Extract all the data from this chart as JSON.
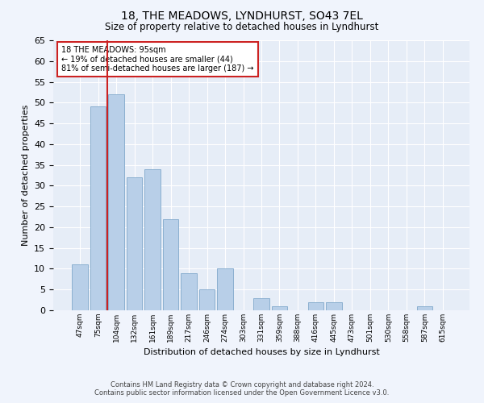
{
  "title": "18, THE MEADOWS, LYNDHURST, SO43 7EL",
  "subtitle": "Size of property relative to detached houses in Lyndhurst",
  "xlabel": "Distribution of detached houses by size in Lyndhurst",
  "ylabel": "Number of detached properties",
  "categories": [
    "47sqm",
    "75sqm",
    "104sqm",
    "132sqm",
    "161sqm",
    "189sqm",
    "217sqm",
    "246sqm",
    "274sqm",
    "303sqm",
    "331sqm",
    "359sqm",
    "388sqm",
    "416sqm",
    "445sqm",
    "473sqm",
    "501sqm",
    "530sqm",
    "558sqm",
    "587sqm",
    "615sqm"
  ],
  "values": [
    11,
    49,
    52,
    32,
    34,
    22,
    9,
    5,
    10,
    0,
    3,
    1,
    0,
    2,
    2,
    0,
    0,
    0,
    0,
    1,
    0
  ],
  "bar_color": "#b8cfe8",
  "bar_edge_color": "#8aafd0",
  "vline_color": "#cc2222",
  "vline_x": 1.5,
  "annotation_text_line1": "18 THE MEADOWS: 95sqm",
  "annotation_text_line2": "← 19% of detached houses are smaller (44)",
  "annotation_text_line3": "81% of semi-detached houses are larger (187) →",
  "ylim": [
    0,
    65
  ],
  "yticks": [
    0,
    5,
    10,
    15,
    20,
    25,
    30,
    35,
    40,
    45,
    50,
    55,
    60,
    65
  ],
  "footer_line1": "Contains HM Land Registry data © Crown copyright and database right 2024.",
  "footer_line2": "Contains public sector information licensed under the Open Government Licence v3.0.",
  "background_color": "#f0f4fc",
  "plot_background_color": "#e6edf7"
}
